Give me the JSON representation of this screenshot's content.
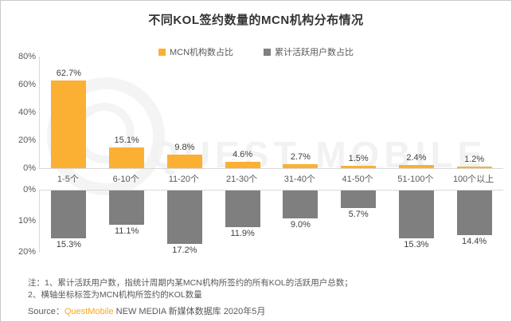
{
  "title": "不同KOL签约数量的MCN机构分布情况",
  "colors": {
    "mcn_orange": "#FBB034",
    "users_gray": "#7F7F7F",
    "axis_line": "#D9D9D9",
    "text_gray": "#595959",
    "watermark_gray": "#F2F2F2",
    "brand_orange": "#FBA919"
  },
  "legend": [
    {
      "label": "MCN机构数占比",
      "color": "#FBB034"
    },
    {
      "label": "累计活跃用户数占比",
      "color": "#7F7F7F"
    }
  ],
  "chart_data": {
    "type": "bar",
    "title": "不同KOL签约数量的MCN机构分布情况",
    "categories": [
      "1-5个",
      "6-10个",
      "11-20个",
      "21-30个",
      "31-40个",
      "41-50个",
      "51-100个",
      "100个以上"
    ],
    "series": [
      {
        "name": "MCN机构数占比",
        "values": [
          62.7,
          15.1,
          9.8,
          4.6,
          2.7,
          1.5,
          2.4,
          1.2
        ],
        "color": "#FBB034",
        "direction": "up",
        "axis_max": 80,
        "axis_ticks": [
          "0%",
          "20%",
          "40%",
          "60%",
          "80%"
        ]
      },
      {
        "name": "累计活跃用户数占比",
        "values": [
          15.3,
          11.1,
          17.2,
          11.9,
          9.0,
          5.7,
          15.3,
          14.4
        ],
        "color": "#7F7F7F",
        "direction": "down",
        "axis_max": 20,
        "axis_ticks": [
          "0%",
          "10%",
          "20%"
        ]
      }
    ],
    "value_label_format": "0.0%",
    "grid": false,
    "legend_position": "top"
  },
  "watermark": {
    "text": "QUEST MOBILE"
  },
  "notes": {
    "line1": "注：1、累计活跃用户数，指统计周期内某MCN机构所签约的所有KOL的活跃用户总数；",
    "line2": "2、横轴坐标标签为MCN机构所签约的KOL数量",
    "source_prefix": "Source：",
    "source_brand": "QuestMobile",
    "source_rest": " NEW MEDIA 新媒体数据库 2020年5月"
  }
}
